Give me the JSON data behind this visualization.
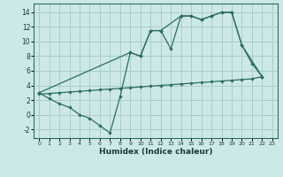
{
  "xlabel": "Humidex (Indice chaleur)",
  "background_color": "#cde8e8",
  "grid_color": "#aacccc",
  "line_color": "#2a6e60",
  "spine_color": "#2a6e60",
  "xlim": [
    -0.5,
    23.5
  ],
  "ylim": [
    -3.2,
    15.2
  ],
  "xticks": [
    0,
    1,
    2,
    3,
    4,
    5,
    6,
    7,
    8,
    9,
    10,
    11,
    12,
    13,
    14,
    15,
    16,
    17,
    18,
    19,
    20,
    21,
    22,
    23
  ],
  "yticks": [
    -2,
    0,
    2,
    4,
    6,
    8,
    10,
    12,
    14
  ],
  "line1_x": [
    0,
    1,
    2,
    3,
    4,
    5,
    6,
    7,
    8,
    9,
    10,
    11,
    12,
    13,
    14,
    15,
    16,
    17,
    18,
    19,
    20,
    21,
    22
  ],
  "line1_y": [
    3.0,
    2.2,
    1.5,
    1.0,
    0.0,
    -0.5,
    -1.5,
    -2.5,
    2.5,
    8.5,
    8.0,
    11.5,
    11.5,
    9.0,
    13.5,
    13.5,
    13.0,
    13.5,
    14.0,
    14.0,
    9.5,
    7.0,
    5.2
  ],
  "line2_x": [
    0,
    1,
    2,
    3,
    4,
    5,
    6,
    7,
    8,
    9,
    10,
    11,
    12,
    13,
    14,
    15,
    16,
    17,
    18,
    19,
    20,
    21,
    22
  ],
  "line2_y": [
    2.8,
    2.9,
    3.0,
    3.1,
    3.2,
    3.3,
    3.4,
    3.5,
    3.6,
    3.7,
    3.8,
    3.9,
    4.0,
    4.1,
    4.2,
    4.3,
    4.4,
    4.5,
    4.6,
    4.7,
    4.8,
    4.9,
    5.2
  ],
  "line3_x": [
    0,
    9,
    10,
    11,
    12,
    14,
    15,
    16,
    17,
    18,
    19,
    20,
    22
  ],
  "line3_y": [
    3.0,
    8.5,
    8.0,
    11.5,
    11.5,
    13.5,
    13.5,
    13.0,
    13.5,
    14.0,
    14.0,
    9.5,
    5.2
  ]
}
